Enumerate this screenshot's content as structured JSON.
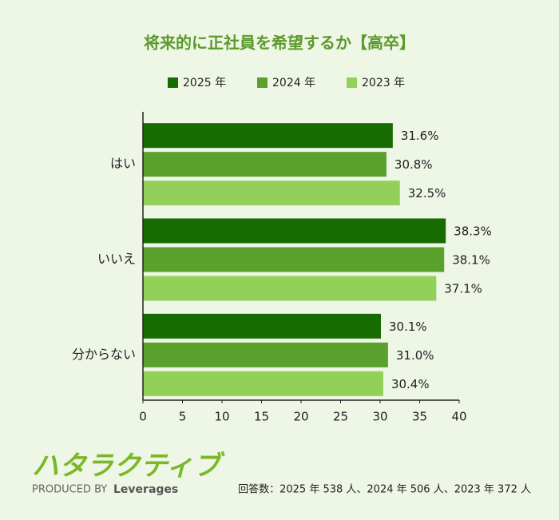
{
  "chart_data": {
    "type": "hbar",
    "title": "将来的に正社員を希望するか【高卒】",
    "categories": [
      "はい",
      "いいえ",
      "分からない"
    ],
    "series": [
      {
        "name": "2025 年",
        "color": "#176b00",
        "values": [
          31.6,
          38.3,
          30.1
        ],
        "value_labels": [
          "31.6%",
          "38.3%",
          "30.1%"
        ]
      },
      {
        "name": "2024 年",
        "color": "#5aa02c",
        "values": [
          30.8,
          38.1,
          31.0
        ],
        "value_labels": [
          "30.8%",
          "38.1%",
          "31.0%"
        ]
      },
      {
        "name": "2023 年",
        "color": "#92d05a",
        "values": [
          32.5,
          37.1,
          30.4
        ],
        "value_labels": [
          "32.5%",
          "37.1%",
          "30.4%"
        ]
      }
    ],
    "xlim": [
      0,
      40
    ],
    "xticks": [
      0,
      5,
      10,
      15,
      20,
      25,
      30,
      35,
      40
    ],
    "grid": false,
    "legend": "top"
  },
  "footer": {
    "logo": "ハタラクティブ",
    "produced_by": "PRODUCED BY",
    "brand": "Leverages",
    "note": "回答数：2025 年 538 人、2024 年 506 人、2023 年 372 人"
  }
}
